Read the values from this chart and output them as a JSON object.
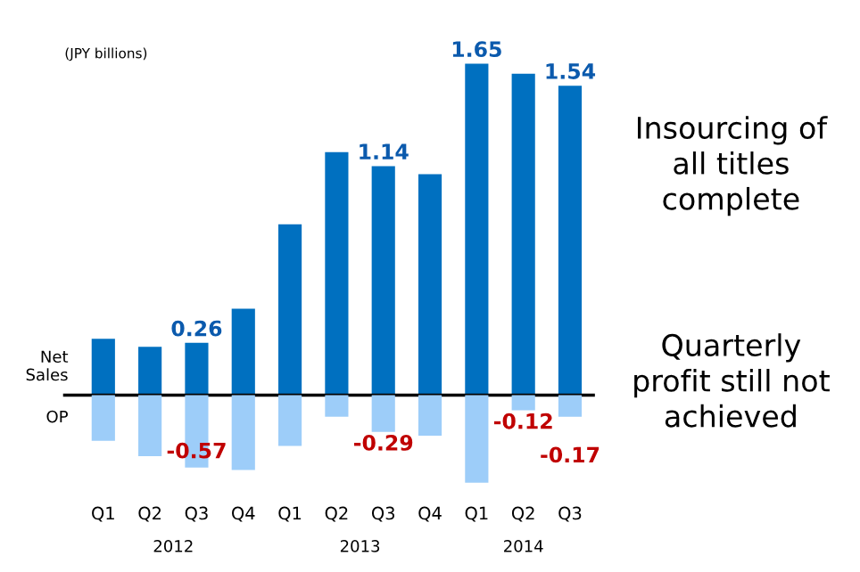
{
  "chart_data": {
    "type": "bar",
    "categories": [
      "Q1",
      "Q2",
      "Q3",
      "Q4",
      "Q1",
      "Q2",
      "Q3",
      "Q4",
      "Q1",
      "Q2",
      "Q3"
    ],
    "series": [
      {
        "name": "Net Sales",
        "color": "#0070c0",
        "values": [
          0.28,
          0.24,
          0.26,
          0.43,
          0.85,
          1.21,
          1.14,
          1.1,
          1.65,
          1.6,
          1.54
        ],
        "value_labels": [
          null,
          null,
          "0.26",
          null,
          null,
          null,
          "1.14",
          null,
          "1.65",
          null,
          "1.54"
        ]
      },
      {
        "name": "OP",
        "color": "#9dcdf9",
        "axis": "y2",
        "values": [
          -0.36,
          -0.48,
          -0.57,
          -0.59,
          -0.4,
          -0.17,
          -0.29,
          -0.32,
          -0.69,
          -0.12,
          -0.17
        ],
        "value_labels": [
          null,
          null,
          "-0.57",
          null,
          null,
          null,
          "-0.29",
          null,
          null,
          "-0.12",
          "-0.17"
        ]
      }
    ],
    "stacked": true,
    "tick_labels": "x",
    "grid": false,
    "legend": false,
    "annotations": [
      "(JPY billions)",
      "2012",
      "2013",
      "2014",
      "Insourcing of\nall titles\ncomplete",
      "Quarterly\nprofit still not\nachieved"
    ]
  }
}
